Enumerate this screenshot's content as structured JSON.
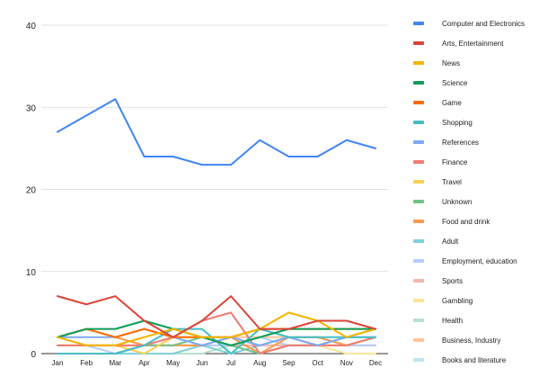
{
  "chart_data": {
    "type": "line",
    "title": "",
    "xlabel": "",
    "ylabel": "",
    "categories": [
      "Jan",
      "Feb",
      "Mar",
      "Apr",
      "May",
      "Jun",
      "Jul",
      "Aug",
      "Sep",
      "Oct",
      "Nov",
      "Dec"
    ],
    "ylim": [
      0,
      40
    ],
    "yticks": [
      0,
      10,
      20,
      30,
      40
    ],
    "grid": "horizontal",
    "legend_position": "right",
    "series": [
      {
        "name": "Computer and Electronics",
        "color": "#4285f4",
        "values": [
          27,
          29,
          31,
          24,
          24,
          23,
          23,
          26,
          24,
          24,
          26,
          25
        ]
      },
      {
        "name": "Arts, Entertainment",
        "color": "#db4437",
        "values": [
          7,
          6,
          7,
          4,
          2,
          4,
          7,
          3,
          3,
          4,
          4,
          3
        ]
      },
      {
        "name": "News",
        "color": "#f4b400",
        "values": [
          2,
          1,
          1,
          2,
          3,
          2,
          2,
          3,
          5,
          4,
          2,
          3
        ]
      },
      {
        "name": "Science",
        "color": "#0f9d58",
        "values": [
          2,
          3,
          3,
          4,
          3,
          2,
          1,
          2,
          3,
          3,
          3,
          3
        ]
      },
      {
        "name": "Game",
        "color": "#ff6d01",
        "values": [
          2,
          3,
          2,
          3,
          2,
          2,
          2,
          3,
          3,
          3,
          3,
          3
        ]
      },
      {
        "name": "Shopping",
        "color": "#46bdc6",
        "values": [
          0,
          0,
          0,
          1,
          3,
          3,
          0,
          3,
          2,
          2,
          2,
          2
        ]
      },
      {
        "name": "References",
        "color": "#7baaf7",
        "values": [
          2,
          2,
          2,
          3,
          2,
          1,
          2,
          1,
          2,
          1,
          2,
          2
        ]
      },
      {
        "name": "Finance",
        "color": "#f07b72",
        "values": [
          1,
          1,
          1,
          1,
          2,
          4,
          5,
          0,
          1,
          1,
          1,
          2
        ]
      },
      {
        "name": "Travel",
        "color": "#fcd04f",
        "values": [
          1,
          1,
          1,
          0,
          2,
          2,
          2,
          3,
          2,
          1,
          1,
          2
        ]
      },
      {
        "name": "Unknown",
        "color": "#71c287",
        "values": [
          0,
          0,
          0,
          1,
          1,
          2,
          1,
          0,
          1,
          1,
          2,
          3
        ]
      },
      {
        "name": "Food and drink",
        "color": "#ff994d",
        "values": [
          2,
          3,
          2,
          1,
          1,
          1,
          2,
          0,
          2,
          2,
          1,
          2
        ]
      },
      {
        "name": "Adult",
        "color": "#7ed1d7",
        "values": [
          0,
          0,
          0,
          0,
          0,
          1,
          0,
          1,
          2,
          2,
          1,
          2
        ]
      },
      {
        "name": "Employment, education",
        "color": "#b3cefb",
        "values": [
          2,
          1,
          0,
          1,
          1,
          1,
          1,
          2,
          1,
          1,
          1,
          1
        ]
      },
      {
        "name": "Sports",
        "color": "#f7b4ae",
        "values": [
          0,
          0,
          0,
          1,
          1,
          1,
          1,
          1,
          1,
          1,
          1,
          1
        ]
      },
      {
        "name": "Gambling",
        "color": "#fde49b",
        "values": [
          1,
          1,
          1,
          1,
          1,
          1,
          1,
          1,
          1,
          1,
          0,
          0
        ]
      },
      {
        "name": "Health",
        "color": "#b7e1cd",
        "values": [
          0,
          0,
          0,
          0,
          0,
          0,
          1,
          1,
          1,
          1,
          1,
          1
        ]
      },
      {
        "name": "Business, Industry",
        "color": "#ffc599",
        "values": [
          1,
          1,
          1,
          1,
          1,
          1,
          2,
          2,
          2,
          1,
          1,
          1
        ]
      },
      {
        "name": "Books and literature",
        "color": "#bde6ea",
        "values": [
          1,
          1,
          1,
          1,
          1,
          1,
          1,
          1,
          1,
          1,
          1,
          1
        ]
      }
    ]
  }
}
